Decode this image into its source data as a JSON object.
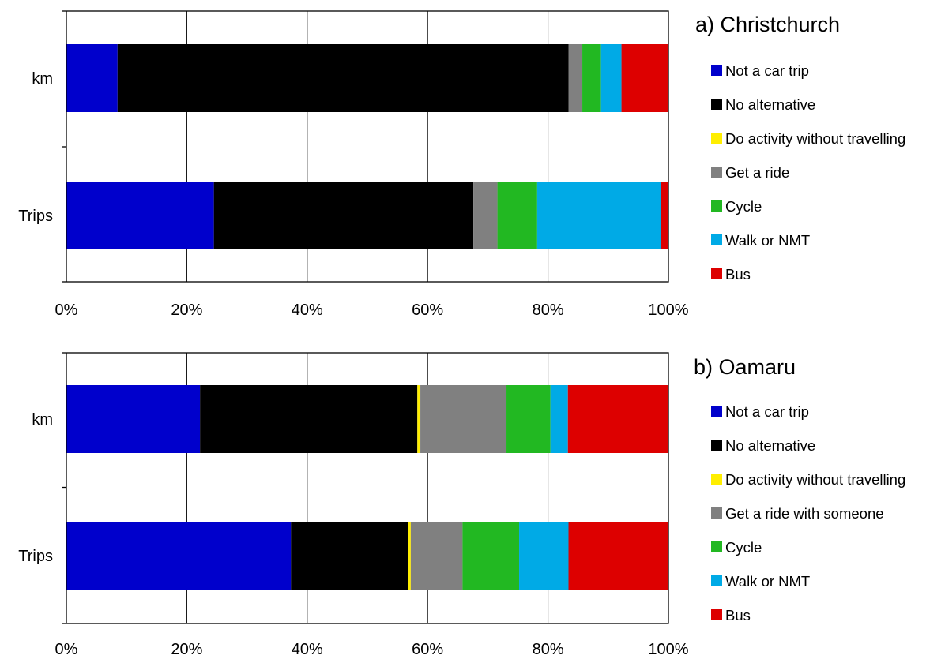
{
  "colors": {
    "Not a car trip": "#0000cc",
    "No alternative": "#000000",
    "Do activity without travelling": "#ffee00",
    "Get a ride": "#808080",
    "Get a ride with someone": "#808080",
    "Cycle": "#22b822",
    "Walk or NMT": "#00aae6",
    "Bus": "#dd0000"
  },
  "chart_data": [
    {
      "type": "bar",
      "orientation": "horizontal",
      "stacked": "percent",
      "title": "a) Christchurch",
      "categories": [
        "km",
        "Trips"
      ],
      "xlim": [
        0,
        100
      ],
      "x_ticks": [
        "0%",
        "20%",
        "40%",
        "60%",
        "80%",
        "100%"
      ],
      "grid": "vertical",
      "legend_position": "right",
      "series": [
        {
          "name": "Not a car trip",
          "values": [
            8.5,
            24.5
          ]
        },
        {
          "name": "No alternative",
          "values": [
            74.9,
            43.1
          ]
        },
        {
          "name": "Do activity without travelling",
          "values": [
            0,
            0
          ]
        },
        {
          "name": "Get a ride",
          "values": [
            2.3,
            4.0
          ]
        },
        {
          "name": "Cycle",
          "values": [
            3.1,
            6.6
          ]
        },
        {
          "name": "Walk or NMT",
          "values": [
            3.4,
            20.6
          ]
        },
        {
          "name": "Bus",
          "values": [
            7.8,
            1.2
          ]
        }
      ]
    },
    {
      "type": "bar",
      "orientation": "horizontal",
      "stacked": "percent",
      "title": "b) Oamaru",
      "categories": [
        "km",
        "Trips"
      ],
      "xlim": [
        0,
        100
      ],
      "x_ticks": [
        "0%",
        "20%",
        "40%",
        "60%",
        "80%",
        "100%"
      ],
      "grid": "vertical",
      "legend_position": "right",
      "series": [
        {
          "name": "Not a car trip",
          "values": [
            22.2,
            37.3
          ]
        },
        {
          "name": "No alternative",
          "values": [
            36.1,
            19.4
          ]
        },
        {
          "name": "Do activity without travelling",
          "values": [
            0.5,
            0.5
          ]
        },
        {
          "name": "Get a ride with someone",
          "values": [
            14.3,
            8.6
          ]
        },
        {
          "name": "Cycle",
          "values": [
            7.3,
            9.4
          ]
        },
        {
          "name": "Walk or NMT",
          "values": [
            2.9,
            8.2
          ]
        },
        {
          "name": "Bus",
          "values": [
            16.7,
            16.6
          ]
        }
      ]
    }
  ]
}
